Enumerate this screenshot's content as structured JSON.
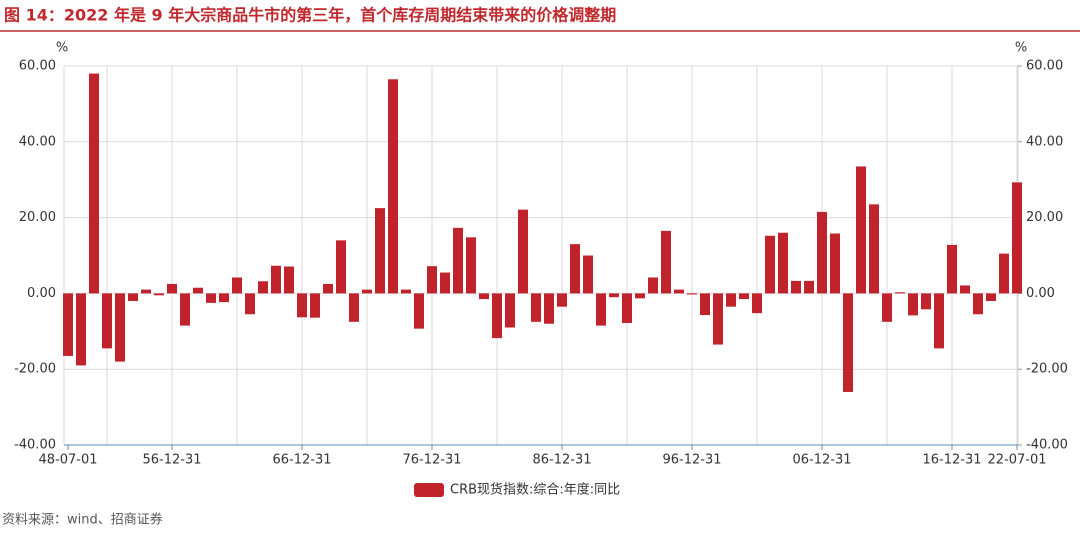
{
  "chart_data": {
    "type": "bar",
    "title": "图 14：2022 年是 9 年大宗商品牛市的第三年，首个库存周期结束带来的价格调整期",
    "source": "资料来源：wind、招商证券",
    "y_label": "%",
    "y2_label": "%",
    "categories": [
      "48-07-01",
      null,
      null,
      null,
      null,
      null,
      null,
      null,
      "56-12-31",
      null,
      null,
      null,
      null,
      null,
      null,
      null,
      null,
      null,
      "66-12-31",
      null,
      null,
      null,
      null,
      null,
      null,
      null,
      null,
      null,
      "76-12-31",
      null,
      null,
      null,
      null,
      null,
      null,
      null,
      null,
      null,
      "86-12-31",
      null,
      null,
      null,
      null,
      null,
      null,
      null,
      null,
      null,
      "96-12-31",
      null,
      null,
      null,
      null,
      null,
      null,
      null,
      null,
      null,
      "06-12-31",
      null,
      null,
      null,
      null,
      null,
      null,
      null,
      null,
      null,
      "16-12-31",
      null,
      null,
      null,
      null,
      "22-07-01"
    ],
    "series": [
      {
        "name": "CRB现货指数:综合:年度:同比",
        "color": "#c0232c",
        "values": [
          -16.5,
          -19,
          58,
          -14.5,
          -18,
          -2,
          1,
          -0.5,
          2.5,
          -8.5,
          1.5,
          -2.5,
          -2.3,
          4.2,
          -5.5,
          3.2,
          7.3,
          7.1,
          -6.3,
          -6.4,
          2.5,
          14,
          -7.5,
          1,
          22.5,
          56.5,
          1,
          -9.3,
          7.2,
          5.5,
          17.3,
          14.8,
          -1.5,
          -11.8,
          -9,
          22.1,
          -7.5,
          -8,
          -3.5,
          13,
          10,
          -8.5,
          -1,
          -7.8,
          -1.3,
          4.2,
          16.5,
          1,
          -0.3,
          -5.7,
          -13.5,
          -3.5,
          -1.5,
          -5.2,
          15.2,
          16,
          3.3,
          3.3,
          21.5,
          15.8,
          -26,
          33.5,
          23.5,
          -7.5,
          0.3,
          -5.8,
          -4.2,
          -14.5,
          12.8,
          2.1,
          -5.5,
          -2,
          10.5,
          29.3
        ]
      }
    ],
    "ylim": [
      -40,
      60
    ],
    "yticks": [
      {
        "value": -40,
        "label": "-40.00"
      },
      {
        "value": -20,
        "label": "-20.00"
      },
      {
        "value": 0,
        "label": "0.00"
      },
      {
        "value": 20,
        "label": "20.00"
      },
      {
        "value": 40,
        "label": "40.00"
      },
      {
        "value": 60,
        "label": "60.00"
      }
    ],
    "y2lim": [
      -40,
      60
    ],
    "y2ticks": [
      {
        "value": -40,
        "label": "-40.00"
      },
      {
        "value": -20,
        "label": "-20.00"
      },
      {
        "value": 0,
        "label": "0.00"
      },
      {
        "value": 20,
        "label": "20.00"
      },
      {
        "value": 40,
        "label": "40.00"
      },
      {
        "value": 60,
        "label": "60.00"
      }
    ],
    "grid": true,
    "legend": "bottom"
  }
}
